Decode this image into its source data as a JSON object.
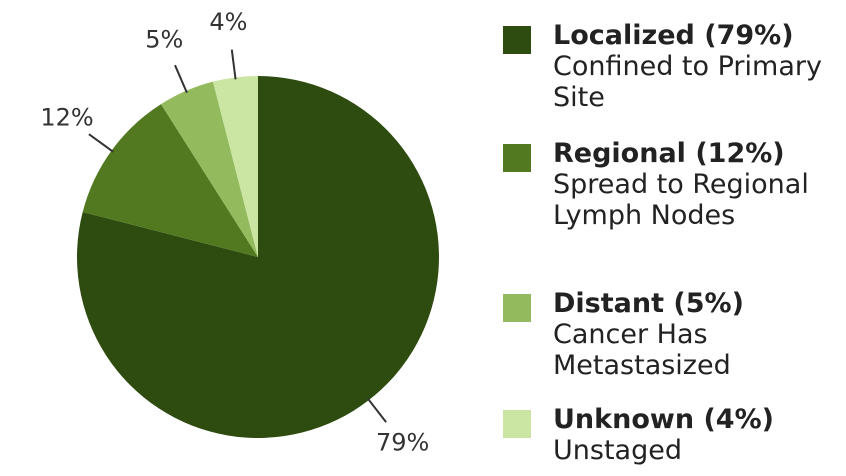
{
  "chart_data": {
    "type": "pie",
    "categories": [
      "Localized (79%)",
      "Regional (12%)",
      "Distant (5%)",
      "Unknown (4%)"
    ],
    "descriptions": [
      "Confined to Primary Site",
      "Spread to Regional Lymph Nodes",
      "Cancer Has Metastasized",
      "Unstaged"
    ],
    "values": [
      79,
      12,
      5,
      4
    ],
    "value_labels": [
      "79%",
      "12%",
      "5%",
      "4%"
    ],
    "colors": [
      "#2e4c10",
      "#52791f",
      "#93ba5c",
      "#cbe6a3"
    ]
  }
}
